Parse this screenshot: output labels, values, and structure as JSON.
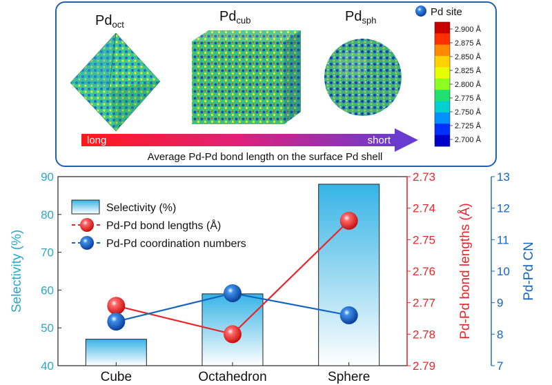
{
  "top_panel": {
    "shapes": [
      {
        "base": "Pd",
        "sub": "oct"
      },
      {
        "base": "Pd",
        "sub": "cub"
      },
      {
        "base": "Pd",
        "sub": "sph"
      }
    ],
    "legend_label": "Pd site",
    "colorbar_ticks": [
      "2.900 Å",
      "2.875 Å",
      "2.850 Å",
      "2.825 Å",
      "2.800 Å",
      "2.775 Å",
      "2.750 Å",
      "2.725 Å",
      "2.700 Å"
    ],
    "colorbar_colors": [
      "#c80000",
      "#ff3000",
      "#ff8a00",
      "#ffd200",
      "#e6ff00",
      "#8cff20",
      "#20e070",
      "#00d0d0",
      "#0090ff",
      "#0030ff",
      "#0000c8"
    ],
    "arrow_left": "long",
    "arrow_right": "short",
    "caption": "Average Pd-Pd bond length on the surface Pd shell"
  },
  "chart_data": {
    "type": "bar",
    "categories": [
      "Cube",
      "Octahedron",
      "Sphere"
    ],
    "series": [
      {
        "name": "Selectivity (%)",
        "kind": "bar",
        "axis": "left",
        "values": [
          47,
          59,
          88
        ]
      },
      {
        "name": "Pd-Pd bond lengths (Å)",
        "kind": "line",
        "axis": "right1",
        "values": [
          2.771,
          2.78,
          2.744
        ],
        "color": "#e8262a"
      },
      {
        "name": "Pd-Pd coordination numbers",
        "kind": "line",
        "axis": "right2",
        "values": [
          8.4,
          9.3,
          8.6
        ],
        "color": "#1565c0"
      }
    ],
    "yaxis_left": {
      "label": "Selectivity (%)",
      "min": 40,
      "max": 90,
      "ticks": [
        "40",
        "50",
        "60",
        "70",
        "80",
        "90"
      ],
      "color": "#2aa7c9"
    },
    "yaxis_right1": {
      "label": "Pd-Pd bond lengths (Å)",
      "min": 2.73,
      "max": 2.79,
      "inverted": true,
      "ticks": [
        "2.73",
        "2.74",
        "2.75",
        "2.76",
        "2.77",
        "2.78",
        "2.79"
      ],
      "color": "#e8262a"
    },
    "yaxis_right2": {
      "label": "Pd-Pd CN",
      "min": 7,
      "max": 13,
      "ticks": [
        "7",
        "8",
        "9",
        "10",
        "11",
        "12",
        "13"
      ],
      "color": "#1565c0"
    },
    "legend_position": "top-left"
  }
}
